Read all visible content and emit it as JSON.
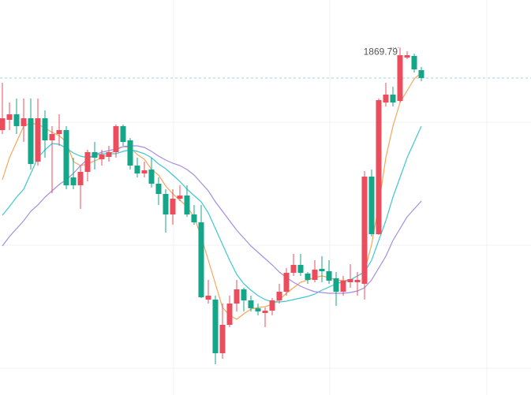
{
  "chart_data": {
    "type": "candlestick",
    "categories": [
      null,
      null,
      null,
      null,
      null,
      null,
      null,
      null,
      null,
      null,
      null,
      null,
      null,
      null,
      null,
      null,
      null,
      null,
      null,
      null,
      null,
      null,
      null,
      null,
      null,
      null,
      null,
      null,
      null,
      null,
      null,
      null,
      null,
      null,
      null,
      null,
      null,
      null,
      null,
      null,
      null,
      null,
      null,
      null,
      null,
      null,
      null,
      null,
      null,
      null,
      null,
      null,
      null,
      null,
      null,
      null,
      null,
      null,
      null,
      null
    ],
    "open": [
      1817.5,
      1824,
      1827.5,
      1820,
      1825,
      1797.5,
      1825,
      1811,
      1815,
      1817.5,
      1787.5,
      1782.5,
      1791,
      1803.5,
      1799,
      1800.5,
      1803.5,
      1820,
      1811,
      1795,
      1790,
      1792.5,
      1783.5,
      1777,
      1764,
      1774,
      1776,
      1764,
      1759,
      1710,
      1710,
      1676,
      1694,
      1707.5,
      1716.5,
      1709.5,
      1704.5,
      1701.5,
      1703,
      1709.5,
      1715,
      1727,
      1732,
      1726.5,
      1722.5,
      1729.5,
      1728,
      1723.5,
      1715,
      1721,
      1721,
      1720,
      1788,
      1751.5,
      1835,
      1840,
      1836,
      1863.5,
      1864.5,
      1855.5
    ],
    "high": [
      1847.5,
      1835,
      1837.5,
      1837.5,
      1837.5,
      1837.5,
      1830,
      1820,
      1827.5,
      1820,
      1800,
      1795,
      1805,
      1810,
      1805,
      1807.5,
      1821,
      1821,
      1812.5,
      1800,
      1797.5,
      1800,
      1787.5,
      1780,
      1780,
      1782.5,
      1782.5,
      1770,
      1770,
      1722.5,
      1712.5,
      1707.5,
      1712.5,
      1722.5,
      1717.5,
      1712.5,
      1707.5,
      1705,
      1711,
      1720,
      1730,
      1739,
      1739,
      1727.5,
      1735,
      1737.5,
      1735,
      1727.5,
      1725,
      1732.5,
      1727.5,
      1791.5,
      1792.5,
      1837.5,
      1847.5,
      1845,
      1869.79,
      1867.5,
      1866,
      1857.5
    ],
    "low": [
      1815,
      1817.5,
      1815,
      1810,
      1792.5,
      1795,
      1800,
      1777.5,
      1807.5,
      1780,
      1780,
      1767.5,
      1785,
      1792.5,
      1795,
      1797.5,
      1800,
      1807.5,
      1792.5,
      1787.5,
      1787.5,
      1781,
      1770,
      1752.5,
      1757.5,
      1772.5,
      1762.5,
      1757.5,
      1711,
      1707.5,
      1669,
      1672.5,
      1692.5,
      1702.5,
      1702.5,
      1702.5,
      1700,
      1692.5,
      1700,
      1707.5,
      1712.5,
      1725,
      1725,
      1720,
      1721,
      1721,
      1720,
      1706,
      1712.5,
      1717.5,
      1712.5,
      1710,
      1750,
      1751,
      1832.5,
      1832.5,
      1835,
      1862.5,
      1854,
      1848.5
    ],
    "close": [
      1825,
      1827.5,
      1820,
      1825,
      1796,
      1825,
      1811,
      1815,
      1817.5,
      1782.5,
      1782.5,
      1791,
      1803.5,
      1800,
      1802,
      1803.5,
      1820,
      1810,
      1795,
      1790,
      1792,
      1783.5,
      1777,
      1764,
      1774,
      1776,
      1764,
      1759,
      1711.5,
      1712.5,
      1676,
      1694,
      1707.5,
      1716.5,
      1709.5,
      1704.5,
      1702.5,
      1703,
      1709.5,
      1715,
      1727,
      1732,
      1727,
      1722.5,
      1729,
      1728,
      1722,
      1715,
      1722,
      1723,
      1722.5,
      1788,
      1751.5,
      1836.5,
      1840,
      1835,
      1865,
      1865,
      1856,
      1850.5
    ],
    "up_color": "#eb4d5c",
    "down_color": "#13a689",
    "series": [
      {
        "color": "#f5a65b",
        "values": [
          1786,
          1800,
          1810,
          1820,
          1822,
          1821,
          1819,
          1816,
          1814,
          1810,
          1797.5,
          1795,
          1796,
          1798,
          1800,
          1802,
          1805,
          1807,
          1806.5,
          1802,
          1799,
          1792.5,
          1789,
          1782,
          1777,
          1773,
          1769,
          1762.5,
          1750,
          1735,
          1720,
          1705,
          1700,
          1697.5,
          1701,
          1704,
          1705,
          1705.5,
          1707,
          1710,
          1714,
          1717.5,
          1721,
          1722.5,
          1724,
          1725,
          1724,
          1722.5,
          1722,
          1722.5,
          1725,
          1727.5,
          1745,
          1770,
          1800,
          1820,
          1835,
          1842.5,
          1850,
          1854
        ]
      },
      {
        "color": "#3ec8cf",
        "values": [
          1763.5,
          1769,
          1775,
          1780,
          1790,
          1800,
          1805,
          1809,
          1808.5,
          1806,
          1803,
          1801,
          1800,
          1801.5,
          1802.5,
          1802.5,
          1802.5,
          1804,
          1805,
          1804,
          1802.5,
          1800,
          1796,
          1793,
          1789,
          1785,
          1780,
          1776,
          1772,
          1765,
          1755,
          1745,
          1735,
          1726,
          1720,
          1716,
          1712.5,
          1710,
          1708.5,
          1708.5,
          1709,
          1710,
          1711,
          1712,
          1713.5,
          1716,
          1718,
          1720,
          1721.5,
          1722.5,
          1725,
          1727.5,
          1735,
          1747.5,
          1760,
          1775,
          1787.5,
          1800,
          1810,
          1820
        ]
      },
      {
        "color": "#a68ce0",
        "values": [
          1744,
          1750,
          1755,
          1760,
          1766,
          1770,
          1775,
          1779,
          1783,
          1786,
          1790,
          1795,
          1799,
          1802,
          1803.5,
          1804.5,
          1805.5,
          1807,
          1807.5,
          1807.5,
          1806.5,
          1804,
          1801,
          1798.5,
          1796.5,
          1795,
          1792.5,
          1789,
          1784,
          1779,
          1772,
          1766,
          1760,
          1754,
          1749,
          1744,
          1740,
          1736,
          1732,
          1727.5,
          1724,
          1721,
          1718.5,
          1716.5,
          1715,
          1714.5,
          1714,
          1714,
          1714,
          1714.5,
          1715.5,
          1717.5,
          1722.5,
          1730,
          1737.5,
          1747.5,
          1755,
          1762.5,
          1767.5,
          1772.5
        ]
      }
    ],
    "high_label": "1869.79",
    "ylim": [
      1649.5,
      1900
    ]
  }
}
